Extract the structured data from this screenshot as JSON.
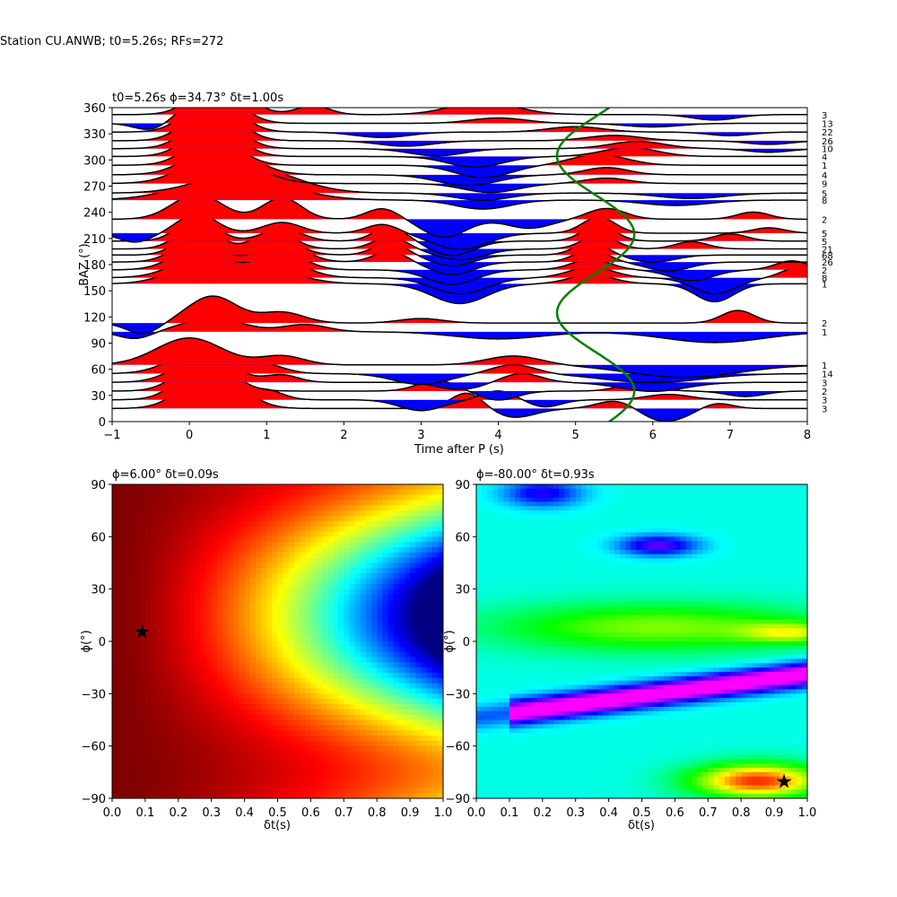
{
  "figure": {
    "suptitle": "Station CU.ANWB; t0=5.26s; RFs=272"
  },
  "colors": {
    "positive_fill": "#ff0000",
    "negative_fill": "#0000ff",
    "trace_line": "#000000",
    "curve": "#008000",
    "star": "#000000"
  },
  "chart_data": [
    {
      "type": "line",
      "title": "t0=5.26s ϕ=34.73° δt=1.00s",
      "xlabel": "Time after P (s)",
      "ylabel": "BAZ (°)",
      "xlim": [
        -1,
        8
      ],
      "ylim": [
        0,
        360
      ],
      "x_ticks": [
        -1,
        0,
        1,
        2,
        3,
        4,
        5,
        6,
        7,
        8
      ],
      "y_ticks": [
        0,
        30,
        60,
        90,
        120,
        150,
        180,
        210,
        240,
        270,
        300,
        330,
        360
      ],
      "fill": "wiggle traces, red above baseline, blue below",
      "traces": [
        {
          "baz": 15,
          "count": "3",
          "peaks": [
            [
              0.3,
              45,
              0.5
            ],
            [
              3.6,
              18,
              0.3
            ],
            [
              4.2,
              -10,
              0.4
            ],
            [
              5.6,
              18,
              0.4
            ],
            [
              6.0,
              -18,
              0.6
            ],
            [
              6.8,
              8,
              0.3
            ]
          ]
        },
        {
          "baz": 25,
          "count": "3",
          "peaks": [
            [
              0.2,
              42,
              0.45
            ],
            [
              1.0,
              10,
              0.3
            ],
            [
              3.0,
              -12,
              0.4
            ],
            [
              4.0,
              10,
              0.3
            ],
            [
              4.6,
              -8,
              0.3
            ],
            [
              6.2,
              6,
              0.4
            ]
          ]
        },
        {
          "baz": 35,
          "count": "2",
          "peaks": [
            [
              0.2,
              38,
              0.45
            ],
            [
              3.2,
              12,
              0.35
            ],
            [
              4.0,
              -10,
              0.35
            ],
            [
              5.8,
              8,
              0.35
            ],
            [
              7.2,
              -6,
              0.35
            ]
          ]
        },
        {
          "baz": 45,
          "count": "3",
          "peaks": [
            [
              0.2,
              30,
              0.5
            ],
            [
              1.2,
              8,
              0.3
            ],
            [
              3.5,
              -8,
              0.4
            ],
            [
              4.3,
              10,
              0.35
            ],
            [
              6.0,
              -10,
              0.6
            ]
          ]
        },
        {
          "baz": 55,
          "count": "14",
          "peaks": [
            [
              0.2,
              30,
              0.55
            ],
            [
              1.0,
              8,
              0.35
            ],
            [
              3.0,
              -12,
              0.5
            ],
            [
              4.2,
              10,
              0.4
            ],
            [
              6.0,
              -10,
              0.9
            ]
          ]
        },
        {
          "baz": 65,
          "count": "1",
          "peaks": [
            [
              0.0,
              30,
              0.6
            ],
            [
              1.2,
              10,
              0.4
            ],
            [
              4.2,
              10,
              0.5
            ],
            [
              6.4,
              -14,
              1.0
            ]
          ]
        },
        {
          "baz": 103,
          "count": "1",
          "peaks": [
            [
              -0.7,
              -8,
              0.3
            ],
            [
              0.3,
              15,
              0.55
            ],
            [
              1.5,
              8,
              0.4
            ],
            [
              4.0,
              -8,
              0.8
            ],
            [
              6.8,
              -12,
              0.9
            ]
          ]
        },
        {
          "baz": 113,
          "count": "2",
          "peaks": [
            [
              -0.6,
              -12,
              0.3
            ],
            [
              0.3,
              30,
              0.45
            ],
            [
              1.2,
              12,
              0.4
            ],
            [
              3.0,
              5,
              0.4
            ],
            [
              7.1,
              14,
              0.3
            ]
          ]
        },
        {
          "baz": 158,
          "count": "1",
          "peaks": [
            [
              0.0,
              15,
              0.5
            ],
            [
              1.0,
              15,
              0.6
            ],
            [
              3.5,
              -22,
              0.5
            ],
            [
              5.2,
              10,
              0.4
            ],
            [
              6.8,
              -20,
              0.35
            ]
          ]
        },
        {
          "baz": 165,
          "count": "8",
          "peaks": [
            [
              0.1,
              20,
              0.5
            ],
            [
              1.2,
              18,
              0.45
            ],
            [
              3.5,
              -18,
              0.5
            ],
            [
              5.2,
              12,
              0.4
            ],
            [
              6.8,
              -18,
              0.4
            ],
            [
              7.9,
              12,
              0.3
            ]
          ]
        },
        {
          "baz": 174,
          "count": "2",
          "peaks": [
            [
              0.1,
              24,
              0.45
            ],
            [
              1.2,
              20,
              0.4
            ],
            [
              3.4,
              -16,
              0.45
            ],
            [
              5.2,
              12,
              0.35
            ],
            [
              6.5,
              -12,
              0.4
            ],
            [
              7.8,
              10,
              0.3
            ]
          ]
        },
        {
          "baz": 183,
          "count": "26",
          "peaks": [
            [
              0.1,
              26,
              0.4
            ],
            [
              1.2,
              22,
              0.4
            ],
            [
              2.6,
              12,
              0.3
            ],
            [
              3.4,
              -14,
              0.4
            ],
            [
              5.2,
              14,
              0.3
            ],
            [
              6.2,
              -10,
              0.4
            ]
          ]
        },
        {
          "baz": 191,
          "count": "68",
          "peaks": [
            [
              0.1,
              26,
              0.35
            ],
            [
              1.1,
              20,
              0.4
            ],
            [
              2.6,
              14,
              0.3
            ],
            [
              3.4,
              -12,
              0.4
            ],
            [
              5.2,
              14,
              0.3
            ],
            [
              6.0,
              -8,
              0.4
            ]
          ]
        },
        {
          "baz": 198,
          "count": "21",
          "peaks": [
            [
              0.1,
              28,
              0.35
            ],
            [
              1.1,
              20,
              0.35
            ],
            [
              2.6,
              14,
              0.3
            ],
            [
              3.5,
              -12,
              0.45
            ],
            [
              5.3,
              16,
              0.3
            ],
            [
              6.5,
              8,
              0.3
            ]
          ]
        },
        {
          "baz": 207,
          "count": "5",
          "peaks": [
            [
              0.1,
              26,
              0.35
            ],
            [
              1.2,
              14,
              0.35
            ],
            [
              2.6,
              16,
              0.3
            ],
            [
              3.4,
              -16,
              0.4
            ],
            [
              5.3,
              18,
              0.3
            ],
            [
              7.0,
              8,
              0.3
            ]
          ]
        },
        {
          "baz": 216,
          "count": "5",
          "peaks": [
            [
              -0.7,
              -10,
              0.3
            ],
            [
              0.1,
              22,
              0.35
            ],
            [
              1.2,
              12,
              0.35
            ],
            [
              2.5,
              10,
              0.3
            ],
            [
              3.5,
              -18,
              0.5
            ],
            [
              5.3,
              18,
              0.3
            ],
            [
              7.5,
              6,
              0.3
            ]
          ]
        },
        {
          "baz": 232,
          "count": "2",
          "peaks": [
            [
              0.1,
              28,
              0.45
            ],
            [
              1.2,
              24,
              0.35
            ],
            [
              2.5,
              12,
              0.3
            ],
            [
              3.3,
              -20,
              0.4
            ],
            [
              4.4,
              -10,
              0.4
            ],
            [
              5.4,
              12,
              0.35
            ],
            [
              7.3,
              8,
              0.3
            ]
          ]
        },
        {
          "baz": 254,
          "count": "8",
          "peaks": [
            [
              0.6,
              28,
              0.9
            ],
            [
              3.8,
              -10,
              0.5
            ],
            [
              6.3,
              -6,
              0.6
            ]
          ]
        },
        {
          "baz": 262,
          "count": "5",
          "peaks": [
            [
              0.8,
              28,
              0.8
            ],
            [
              3.8,
              -8,
              0.5
            ],
            [
              6.5,
              -6,
              0.6
            ]
          ]
        },
        {
          "baz": 273,
          "count": "9",
          "peaks": [
            [
              0.4,
              36,
              0.6
            ],
            [
              3.9,
              -10,
              0.5
            ],
            [
              5.4,
              6,
              0.4
            ]
          ]
        },
        {
          "baz": 283,
          "count": "4",
          "peaks": [
            [
              0.4,
              34,
              0.55
            ],
            [
              3.6,
              -12,
              0.55
            ],
            [
              5.4,
              8,
              0.4
            ]
          ]
        },
        {
          "baz": 294,
          "count": "1",
          "peaks": [
            [
              0.3,
              34,
              0.45
            ],
            [
              3.8,
              -14,
              0.5
            ],
            [
              5.3,
              12,
              0.5
            ]
          ]
        },
        {
          "baz": 304,
          "count": "4",
          "peaks": [
            [
              0.3,
              36,
              0.45
            ],
            [
              3.7,
              -12,
              0.5
            ],
            [
              5.7,
              10,
              0.5
            ]
          ]
        },
        {
          "baz": 313,
          "count": "10",
          "peaks": [
            [
              0.3,
              38,
              0.45
            ],
            [
              3.2,
              -8,
              0.5
            ],
            [
              5.8,
              8,
              0.5
            ],
            [
              7.5,
              -4,
              0.4
            ]
          ]
        },
        {
          "baz": 322,
          "count": "26",
          "peaks": [
            [
              0.3,
              40,
              0.45
            ],
            [
              2.8,
              -6,
              0.5
            ],
            [
              5.5,
              6,
              0.5
            ],
            [
              7.5,
              -4,
              0.4
            ]
          ]
        },
        {
          "baz": 332,
          "count": "22",
          "peaks": [
            [
              0.3,
              40,
              0.45
            ],
            [
              2.5,
              -6,
              0.5
            ],
            [
              5.0,
              6,
              0.5
            ],
            [
              7.0,
              -4,
              0.4
            ]
          ]
        },
        {
          "baz": 342,
          "count": "13",
          "peaks": [
            [
              0.3,
              40,
              0.45
            ],
            [
              -0.5,
              -8,
              0.3
            ],
            [
              4.0,
              6,
              0.5
            ],
            [
              6.0,
              -4,
              0.5
            ]
          ]
        },
        {
          "baz": 352,
          "count": "3",
          "peaks": [
            [
              0.4,
              40,
              0.45
            ],
            [
              1.6,
              10,
              0.3
            ],
            [
              3.8,
              14,
              0.6
            ],
            [
              6.8,
              -6,
              0.4
            ]
          ]
        }
      ],
      "green_curve": {
        "description": "sinusoidal timing curve t0 + (dt/2)·cos(2(BAZ−ϕ))",
        "t0": 5.26,
        "phi": 34.73,
        "dt": 1.0
      }
    },
    {
      "type": "heatmap",
      "title": "ϕ=6.00° δt=0.09s",
      "xlabel": "δt(s)",
      "ylabel": "ϕ(°)",
      "xlim": [
        0,
        1
      ],
      "ylim": [
        -90,
        90
      ],
      "x_ticks": [
        "0.0",
        "0.1",
        "0.2",
        "0.3",
        "0.4",
        "0.5",
        "0.6",
        "0.7",
        "0.8",
        "0.9",
        "1.0"
      ],
      "y_ticks": [
        -90,
        -60,
        -30,
        0,
        30,
        60,
        90
      ],
      "colormap": "jet-like (dark red high, dark blue low)",
      "star": {
        "dt": 0.09,
        "phi": 6
      }
    },
    {
      "type": "heatmap",
      "title": "ϕ=-80.00° δt=0.93s",
      "xlabel": "δt(s)",
      "ylabel": "ϕ(°)",
      "xlim": [
        0,
        1
      ],
      "ylim": [
        -90,
        90
      ],
      "x_ticks": [
        "0.0",
        "0.1",
        "0.2",
        "0.3",
        "0.4",
        "0.5",
        "0.6",
        "0.7",
        "0.8",
        "0.9",
        "1.0"
      ],
      "y_ticks": [
        -90,
        -60,
        -30,
        0,
        30,
        60,
        90
      ],
      "colormap": "hsv-like (red high through green to magenta low)",
      "star": {
        "dt": 0.93,
        "phi": -80
      }
    }
  ]
}
